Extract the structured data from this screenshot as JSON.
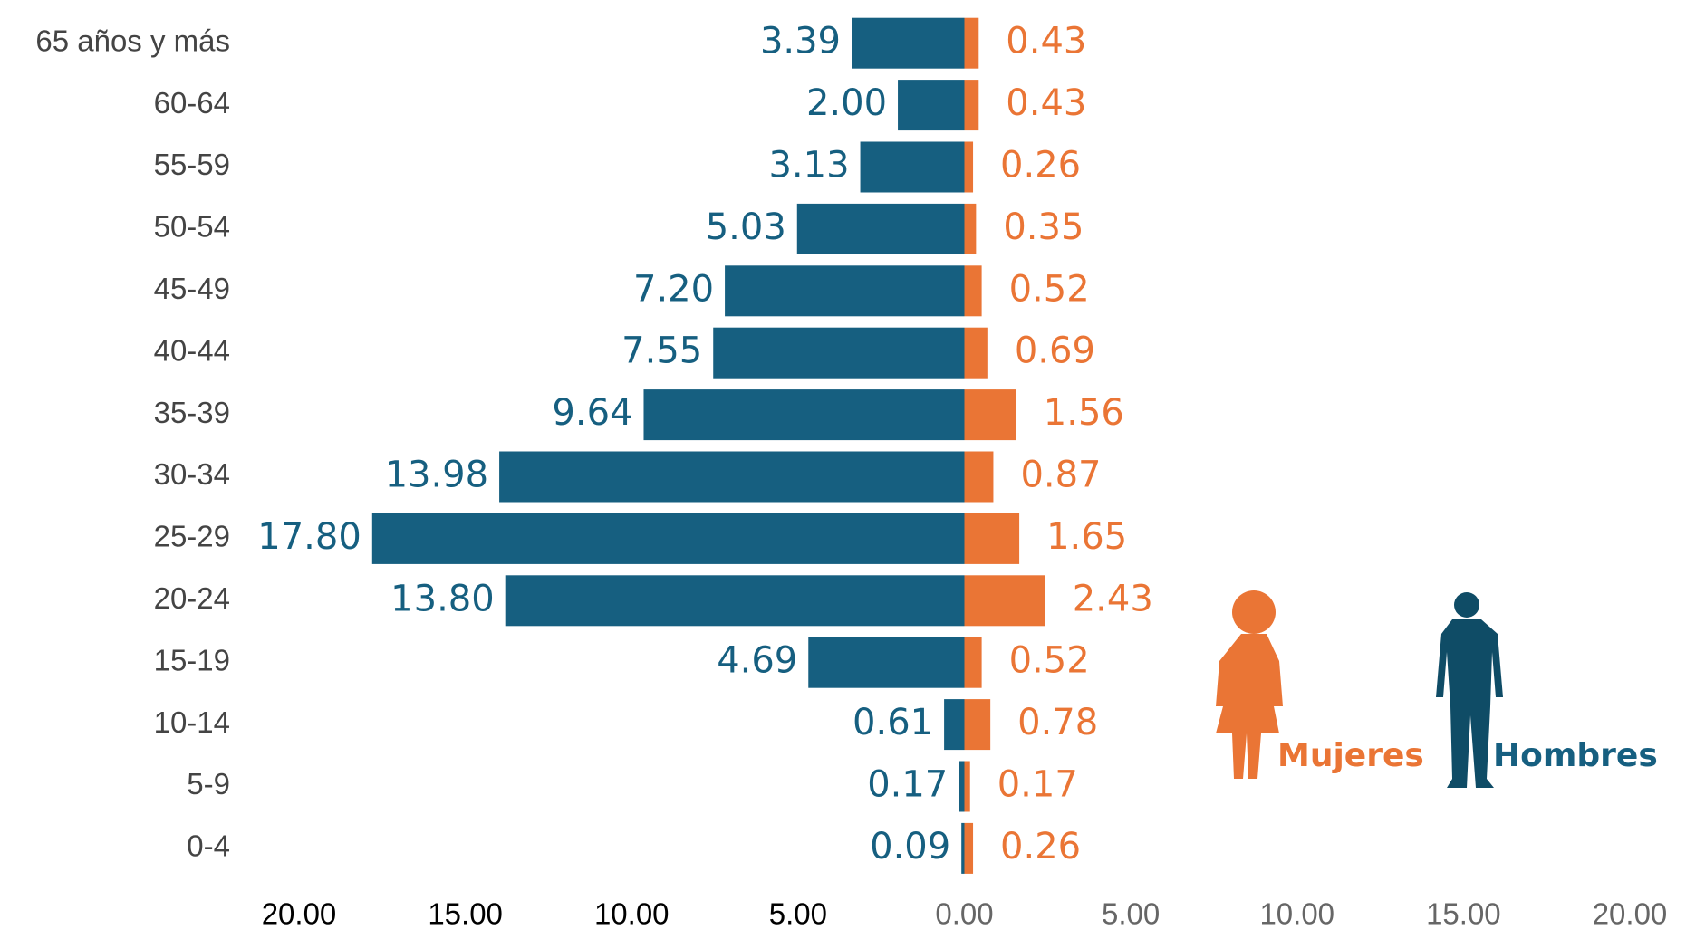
{
  "chart_data": {
    "type": "pyramid",
    "categories": [
      "65 años y más",
      "60-64",
      "55-59",
      "50-54",
      "45-49",
      "40-44",
      "35-39",
      "30-34",
      "25-29",
      "20-24",
      "15-19",
      "10-14",
      "5-9",
      "0-4"
    ],
    "series": [
      {
        "name": "Hombres",
        "color": "#165f80",
        "side": "left",
        "values": [
          3.39,
          2.0,
          3.13,
          5.03,
          7.2,
          7.55,
          9.64,
          13.98,
          17.8,
          13.8,
          4.69,
          0.61,
          0.17,
          0.09
        ],
        "value_labels": [
          "3.39",
          "2.00",
          "3.13",
          "5.03",
          "7.20",
          "7.55",
          "9.64",
          "13.98",
          "17.80",
          "13.80",
          "4.69",
          "0.61",
          "0.17",
          "0.09"
        ]
      },
      {
        "name": "Mujeres",
        "color": "#ea7535",
        "side": "right",
        "values": [
          0.43,
          0.43,
          0.26,
          0.35,
          0.52,
          0.69,
          1.56,
          0.87,
          1.65,
          2.43,
          0.52,
          0.78,
          0.17,
          0.26
        ],
        "value_labels": [
          "0.43",
          "0.43",
          "0.26",
          "0.35",
          "0.52",
          "0.69",
          "1.56",
          "0.87",
          "1.65",
          "2.43",
          "0.52",
          "0.78",
          "0.17",
          "0.26"
        ]
      }
    ],
    "xlim": [
      -20,
      20
    ],
    "xticks": [
      {
        "value": -20,
        "label": "20.00"
      },
      {
        "value": -15,
        "label": "15.00"
      },
      {
        "value": -10,
        "label": "10.00"
      },
      {
        "value": -5,
        "label": "5.00"
      },
      {
        "value": 0,
        "label": "0.00"
      },
      {
        "value": 5,
        "label": "5.00"
      },
      {
        "value": 10,
        "label": "10.00"
      },
      {
        "value": 15,
        "label": "15.00"
      },
      {
        "value": 20,
        "label": "20.00"
      }
    ]
  }
}
